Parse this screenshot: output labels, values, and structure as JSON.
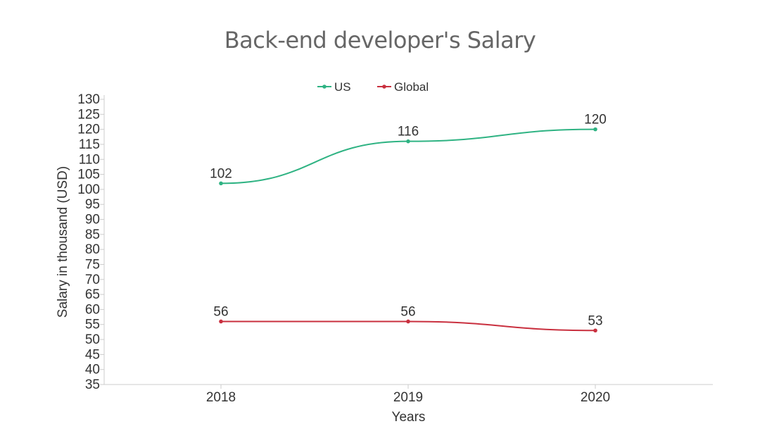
{
  "chart_data": {
    "type": "line",
    "title": "Back-end developer's Salary",
    "xlabel": "Years",
    "ylabel": "Salary in thousand (USD)",
    "categories": [
      "2018",
      "2019",
      "2020"
    ],
    "ylim": [
      35,
      130
    ],
    "ytick_step": 5,
    "yticks": [
      "35",
      "40",
      "45",
      "50",
      "55",
      "60",
      "65",
      "70",
      "75",
      "80",
      "85",
      "90",
      "95",
      "100",
      "105",
      "110",
      "115",
      "120",
      "125",
      "130"
    ],
    "grid": false,
    "legend_position": "top-center",
    "series": [
      {
        "name": "US",
        "color": "#2fb383",
        "values": [
          102,
          116,
          120
        ]
      },
      {
        "name": "Global",
        "color": "#c9303f",
        "values": [
          56,
          56,
          53
        ]
      }
    ]
  }
}
